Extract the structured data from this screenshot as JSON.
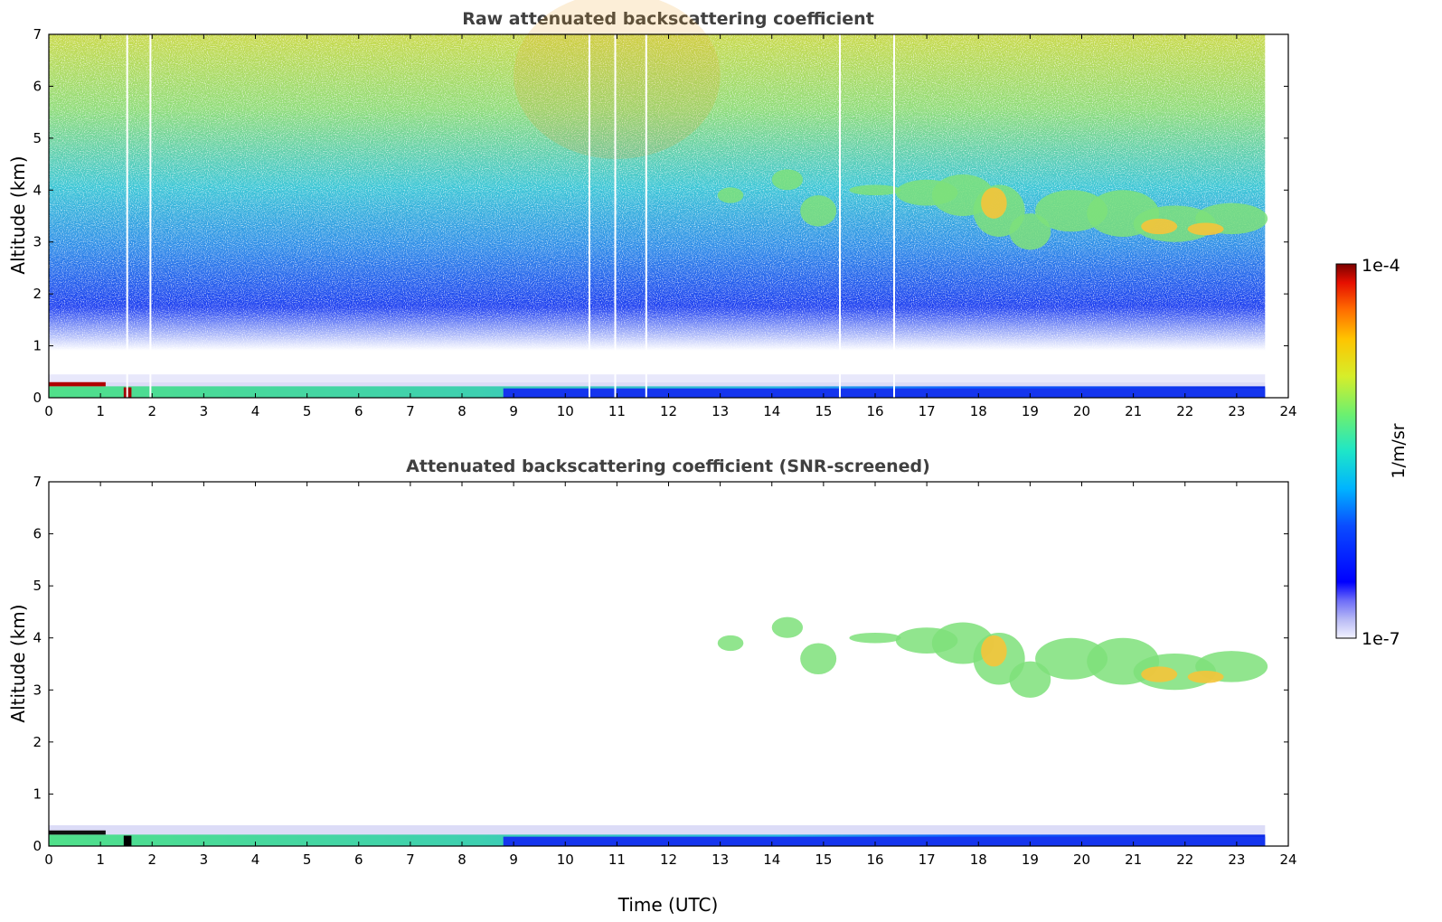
{
  "chart_data": [
    {
      "type": "heatmap",
      "title": "Raw attenuated backscattering coefficient",
      "xlabel": "",
      "ylabel": "Altitude (km)",
      "xlim": [
        0,
        24
      ],
      "ylim": [
        0,
        7
      ],
      "xticks": [
        "0",
        "1",
        "2",
        "3",
        "4",
        "5",
        "6",
        "7",
        "8",
        "9",
        "10",
        "11",
        "12",
        "13",
        "14",
        "15",
        "16",
        "17",
        "18",
        "19",
        "20",
        "21",
        "22",
        "23",
        "24"
      ],
      "yticks": [
        "0",
        "1",
        "2",
        "3",
        "4",
        "5",
        "6",
        "7"
      ],
      "data_end_time": 23.55,
      "features": [
        {
          "name": "surface layer",
          "x": [
            0,
            23.55
          ],
          "altitude": [
            0,
            0.35
          ],
          "level": "low-high"
        },
        {
          "name": "aerosol layer",
          "x": [
            13,
            23.55
          ],
          "altitude": [
            2.8,
            4.5
          ],
          "level": "medium"
        },
        {
          "name": "noise",
          "x": [
            0,
            23.55
          ],
          "altitude": [
            0.5,
            7
          ],
          "level": "low-high"
        }
      ]
    },
    {
      "type": "heatmap",
      "title": "Attenuated backscattering coefficient (SNR-screened)",
      "xlabel": "Time (UTC)",
      "ylabel": "Altitude (km)",
      "xlim": [
        0,
        24
      ],
      "ylim": [
        0,
        7
      ],
      "xticks": [
        "0",
        "1",
        "2",
        "3",
        "4",
        "5",
        "6",
        "7",
        "8",
        "9",
        "10",
        "11",
        "12",
        "13",
        "14",
        "15",
        "16",
        "17",
        "18",
        "19",
        "20",
        "21",
        "22",
        "23",
        "24"
      ],
      "yticks": [
        "0",
        "1",
        "2",
        "3",
        "4",
        "5",
        "6",
        "7"
      ],
      "data_end_time": 23.55,
      "features": [
        {
          "name": "surface layer",
          "x": [
            0,
            23.55
          ],
          "altitude": [
            0,
            0.4
          ],
          "level": "low"
        },
        {
          "name": "aerosol layer",
          "x": [
            13,
            23.55
          ],
          "altitude": [
            2.8,
            4.6
          ],
          "level": "medium"
        }
      ]
    }
  ],
  "colorbar": {
    "label": "1/m/sr",
    "max_label": "1e-4",
    "min_label": "1e-7",
    "scale": "log",
    "colormap": "jet"
  }
}
